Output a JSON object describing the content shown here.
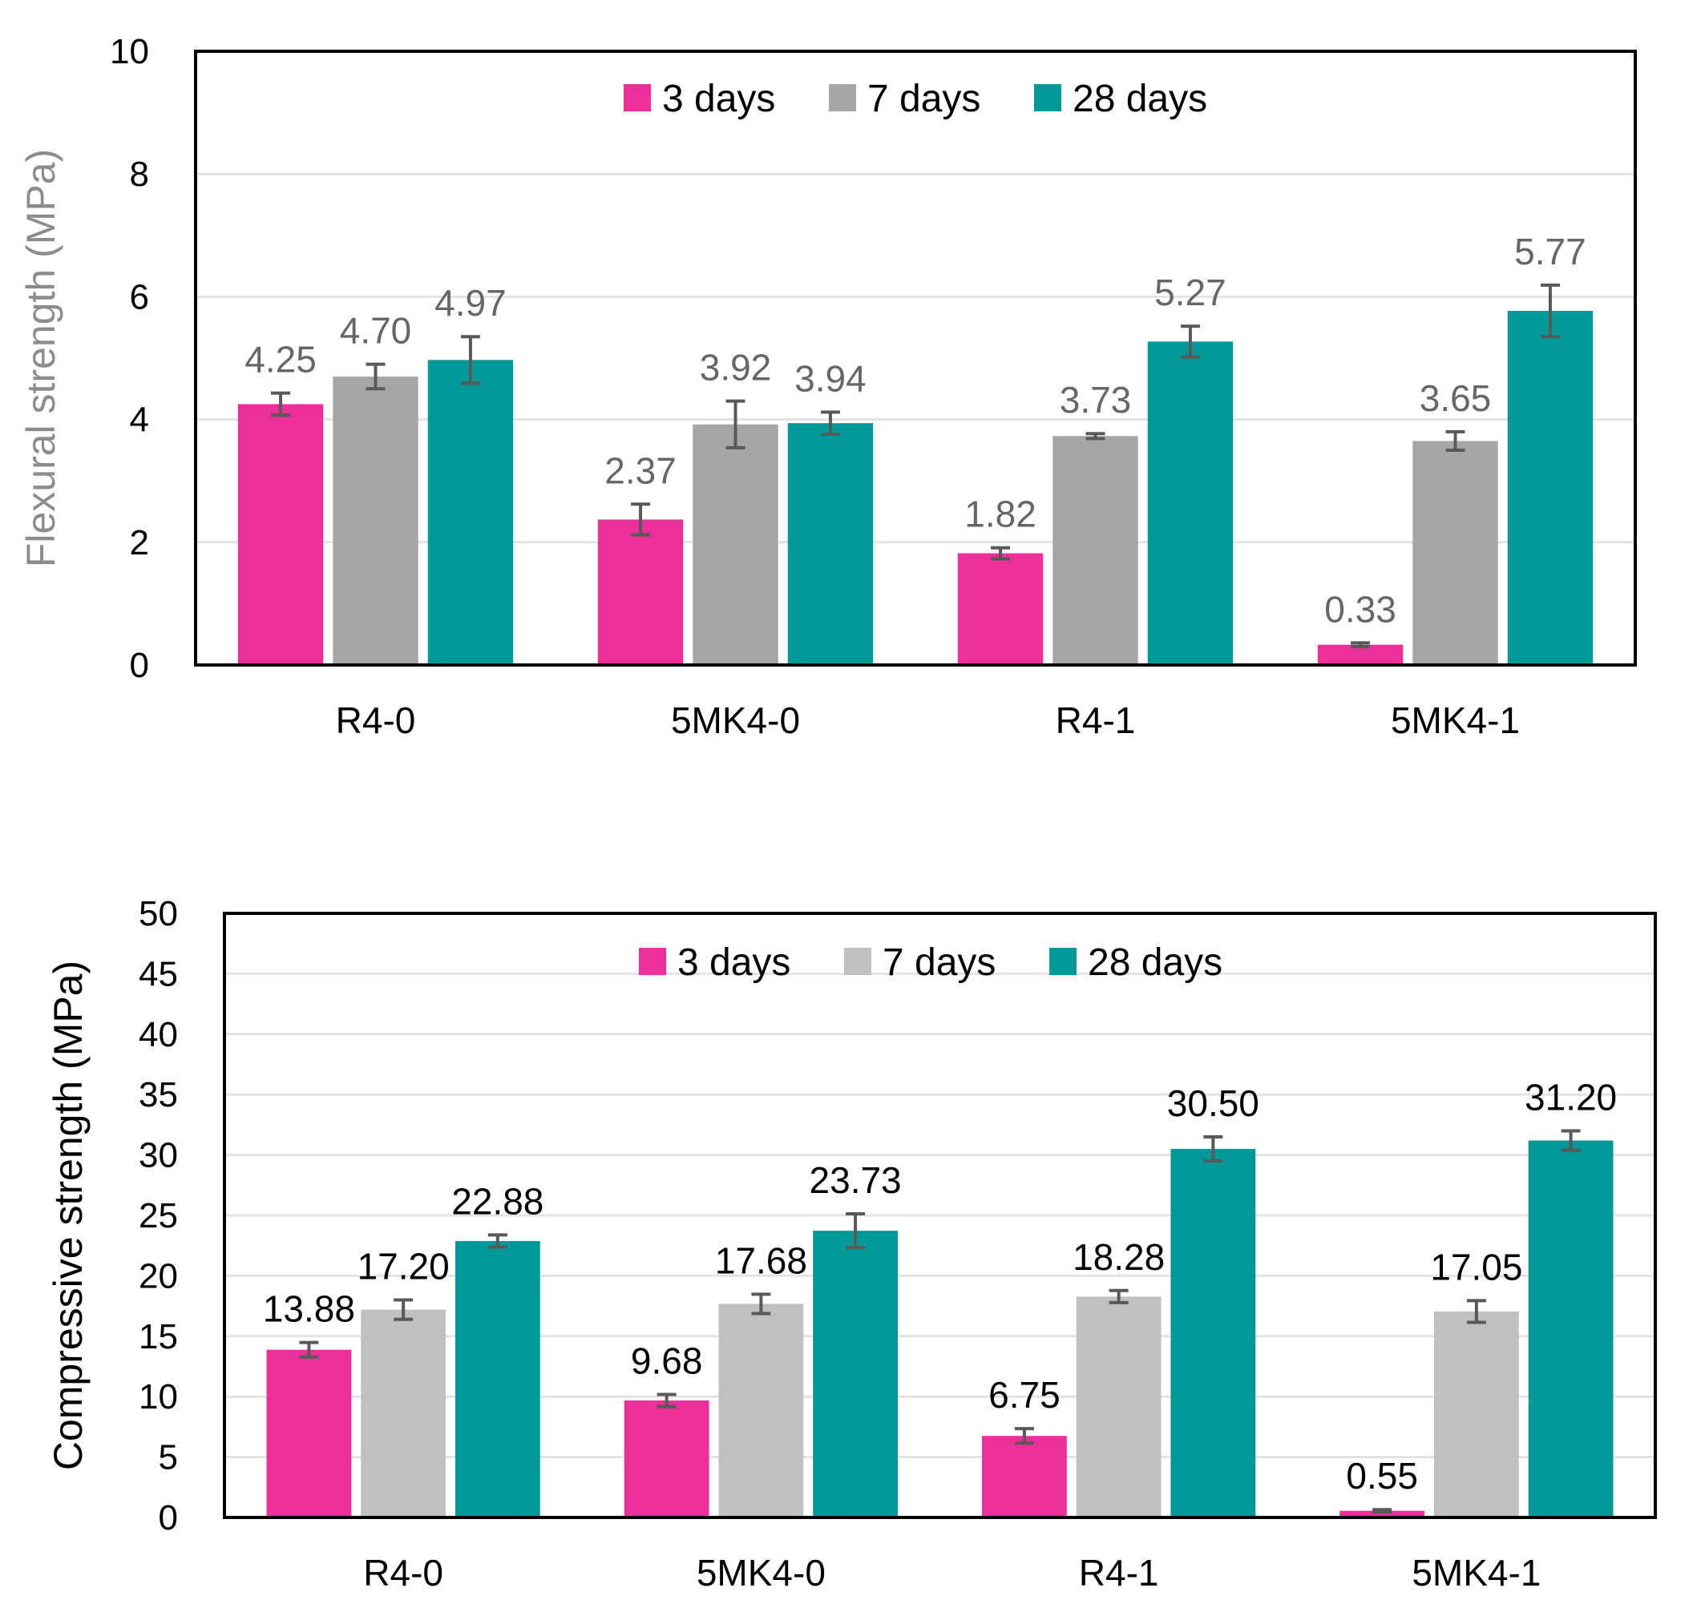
{
  "chart_data": [
    {
      "type": "bar",
      "ylabel": "Flexural strength (MPa)",
      "ylabel_color": "#8c8c8c",
      "ylim": [
        0,
        10
      ],
      "ytick_step": 2,
      "yticks": [
        "0",
        "2",
        "4",
        "6",
        "8",
        "10"
      ],
      "grid": true,
      "legend_position": "top-center",
      "label_color": "#666666",
      "categories": [
        "R4-0",
        "5MK4-0",
        "R4-1",
        "5MK4-1"
      ],
      "series": [
        {
          "name": "3 days",
          "color": "#ec2f9b",
          "values": [
            4.25,
            2.37,
            1.82,
            0.33
          ],
          "labels": [
            "4.25",
            "2.37",
            "1.82",
            "0.33"
          ],
          "errors": [
            0.18,
            0.25,
            0.09,
            0.03
          ]
        },
        {
          "name": "7 days",
          "color": "#a6a6a6",
          "values": [
            4.7,
            3.92,
            3.73,
            3.65
          ],
          "labels": [
            "4.70",
            "3.92",
            "3.73",
            "3.65"
          ],
          "errors": [
            0.2,
            0.38,
            0.04,
            0.15
          ]
        },
        {
          "name": "28 days",
          "color": "#009999",
          "values": [
            4.97,
            3.94,
            5.27,
            5.77
          ],
          "labels": [
            "4.97",
            "3.94",
            "5.27",
            "5.77"
          ],
          "errors": [
            0.38,
            0.18,
            0.25,
            0.42
          ]
        }
      ]
    },
    {
      "type": "bar",
      "ylabel": "Compressive strength (MPa)",
      "ylabel_color": "#000000",
      "ylim": [
        0,
        50
      ],
      "ytick_step": 5,
      "yticks": [
        "0",
        "5",
        "10",
        "15",
        "20",
        "25",
        "30",
        "35",
        "40",
        "45",
        "50"
      ],
      "grid": true,
      "legend_position": "top-center",
      "label_color": "#000000",
      "categories": [
        "R4-0",
        "5MK4-0",
        "R4-1",
        "5MK4-1"
      ],
      "series": [
        {
          "name": "3 days",
          "color": "#ec2f9b",
          "values": [
            13.88,
            9.68,
            6.75,
            0.55
          ],
          "labels": [
            "13.88",
            "9.68",
            "6.75",
            "0.55"
          ],
          "errors": [
            0.6,
            0.5,
            0.6,
            0.1
          ]
        },
        {
          "name": "7 days",
          "color": "#c0c0c0",
          "values": [
            17.2,
            17.68,
            18.28,
            17.05
          ],
          "labels": [
            "17.20",
            "17.68",
            "18.28",
            "17.05"
          ],
          "errors": [
            0.8,
            0.8,
            0.5,
            0.9
          ]
        },
        {
          "name": "28 days",
          "color": "#009999",
          "values": [
            22.88,
            23.73,
            30.5,
            31.2
          ],
          "labels": [
            "22.88",
            "23.73",
            "30.50",
            "31.20"
          ],
          "errors": [
            0.5,
            1.4,
            1.0,
            0.8
          ]
        }
      ]
    }
  ]
}
